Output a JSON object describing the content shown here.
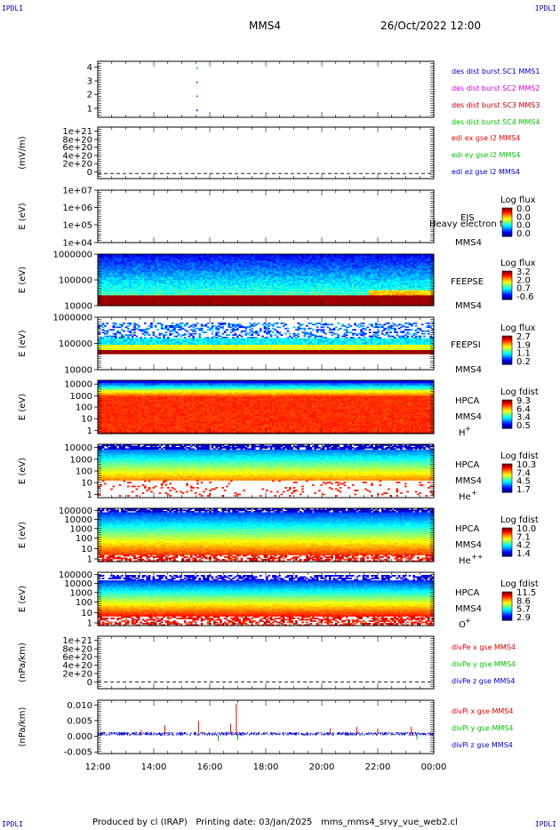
{
  "header": {
    "corner_left": "IPDLI",
    "corner_right": "IPDLI",
    "spacecraft": "MMS4",
    "datetime": "26/Oct/2022 12:00"
  },
  "footer": {
    "producer": "Produced by cl (IRAP)",
    "printing": "Printing date: 03/Jan/2025",
    "file": "mms_mms4_srvy_vue_web2.cl"
  },
  "colors": {
    "red": "#e00000",
    "green": "#00c000",
    "blue": "#0000c0",
    "magenta": "#d000d0",
    "dark_red": "#c00000"
  },
  "chart_data": [
    {
      "type": "scatter",
      "panel": "burst",
      "ylim": [
        0.5,
        4.5
      ],
      "yticks": [
        "1",
        "2",
        "3",
        "4"
      ],
      "series": [
        {
          "name": "des dist burst SC1 MMS1",
          "color": "#0000c0",
          "x": [
            15.55
          ],
          "y": [
            1
          ]
        },
        {
          "name": "des dist burst SC2 MMS2",
          "color": "#d000d0",
          "x": [
            15.55
          ],
          "y": [
            2
          ]
        },
        {
          "name": "des dist burst SC3 MMS3",
          "color": "#c00000",
          "x": [
            15.55
          ],
          "y": [
            3
          ]
        },
        {
          "name": "des dist burst SC4 MMS4",
          "color": "#00c000",
          "x": [
            15.55
          ],
          "y": [
            4
          ]
        }
      ]
    },
    {
      "type": "line",
      "panel": "edi",
      "ylabel": "(mV/m)",
      "yticks": [
        "1e+21",
        "8e+20",
        "6e+20",
        "4e+20",
        "2e+20",
        "0"
      ],
      "series": [
        {
          "name": "edi ex gse l2 MMS4",
          "color": "#e00000"
        },
        {
          "name": "edi ey gse l2 MMS4",
          "color": "#00c000"
        },
        {
          "name": "edi ez gse l2 MMS4",
          "color": "#0000c0"
        }
      ]
    },
    {
      "type": "heatmap",
      "panel": "eis",
      "ylabel": "E (eV)",
      "yticks": [
        "1e+07",
        "1e+06",
        "1e+05",
        "1e+04"
      ],
      "instrument": "EIS",
      "overlay": "Heavy electron to",
      "spacecraft": "MMS4",
      "colorbar_title": "Log flux",
      "colorbar_values": [
        "0.0",
        "0.0",
        "0.0",
        "0.0"
      ]
    },
    {
      "type": "heatmap",
      "panel": "feepse",
      "ylabel": "E (eV)",
      "yticks": [
        "1000000",
        "100000",
        "10000"
      ],
      "instrument": "FEEPSE",
      "spacecraft": "MMS4",
      "colorbar_title": "Log flux",
      "colorbar_values": [
        "3.2",
        "2.0",
        "0.7",
        "-0.6"
      ]
    },
    {
      "type": "heatmap",
      "panel": "feepsi",
      "ylabel": "E (eV)",
      "yticks": [
        "1000000",
        "100000",
        "10000"
      ],
      "instrument": "FEEPSI",
      "spacecraft": "MMS4",
      "colorbar_title": "Log flux",
      "colorbar_values": [
        "2.7",
        "1.9",
        "1.1",
        "0.2"
      ]
    },
    {
      "type": "heatmap",
      "panel": "hpca_h",
      "ylabel": "E (eV)",
      "yticks": [
        "10000",
        "1000",
        "100",
        "10",
        "1"
      ],
      "instrument": "HPCA",
      "spacecraft": "MMS4",
      "species": "H",
      "charge": "+",
      "colorbar_title": "Log fdist",
      "colorbar_values": [
        "9.3",
        "6.4",
        "3.4",
        "0.5"
      ]
    },
    {
      "type": "heatmap",
      "panel": "hpca_he",
      "ylabel": "E (eV)",
      "yticks": [
        "10000",
        "1000",
        "100",
        "10",
        "1"
      ],
      "instrument": "HPCA",
      "spacecraft": "MMS4",
      "species": "He",
      "charge": "+",
      "colorbar_title": "Log fdist",
      "colorbar_values": [
        "10.3",
        "7.4",
        "4.5",
        "1.7"
      ]
    },
    {
      "type": "heatmap",
      "panel": "hpca_he2",
      "ylabel": "E (eV)",
      "yticks": [
        "100000",
        "10000",
        "1000",
        "100",
        "10",
        "1"
      ],
      "instrument": "HPCA",
      "spacecraft": "MMS4",
      "species": "He",
      "charge": "++",
      "colorbar_title": "Log fdist",
      "colorbar_values": [
        "10.0",
        "7.1",
        "4.2",
        "1.4"
      ]
    },
    {
      "type": "heatmap",
      "panel": "hpca_o",
      "ylabel": "E (eV)",
      "yticks": [
        "100000",
        "10000",
        "1000",
        "100",
        "10",
        "1"
      ],
      "instrument": "HPCA",
      "spacecraft": "MMS4",
      "species": "O",
      "charge": "+",
      "colorbar_title": "Log fdist",
      "colorbar_values": [
        "11.5",
        "8.6",
        "5.7",
        "2.9"
      ]
    },
    {
      "type": "line",
      "panel": "divpe",
      "ylabel": "(nPa/km)",
      "yticks": [
        "1e+21",
        "8e+20",
        "6e+20",
        "4e+20",
        "2e+20",
        "0"
      ],
      "series": [
        {
          "name": "divPe x gse MMS4",
          "color": "#e00000"
        },
        {
          "name": "divPe y gse MMS4",
          "color": "#00c000"
        },
        {
          "name": "divPe z gse MMS4",
          "color": "#0000c0"
        }
      ]
    },
    {
      "type": "line",
      "panel": "divpi",
      "ylabel": "(nPa/km)",
      "ylim": [
        -0.0055,
        0.0115
      ],
      "yticks": [
        "0.010",
        "0.005",
        "0.000",
        "-0.005"
      ],
      "ytick_values": [
        0.01,
        0.005,
        0.0,
        -0.005
      ],
      "series": [
        {
          "name": "divPi x gse MMS4",
          "color": "#e00000",
          "spikes": [
            [
              13.55,
              0.002
            ],
            [
              14.4,
              0.0035
            ],
            [
              15.6,
              0.005
            ],
            [
              16.75,
              0.004
            ],
            [
              16.95,
              0.0105
            ],
            [
              20.3,
              0.0025
            ],
            [
              21.25,
              0.003
            ],
            [
              22.0,
              0.0025
            ],
            [
              23.2,
              0.003
            ]
          ]
        },
        {
          "name": "divPi y gse MMS4",
          "color": "#00c000",
          "spikes": [
            [
              16.3,
              -0.0015
            ],
            [
              17.0,
              -0.0012
            ],
            [
              23.4,
              -0.001
            ]
          ]
        },
        {
          "name": "divPi z gse MMS4",
          "color": "#0000c0",
          "base": 0.0008,
          "noise": 0.0006
        }
      ]
    }
  ],
  "xaxis": {
    "range_hours": [
      12,
      24
    ],
    "ticks": [
      "12:00",
      "14:00",
      "16:00",
      "18:00",
      "20:00",
      "22:00",
      "00:00"
    ]
  }
}
